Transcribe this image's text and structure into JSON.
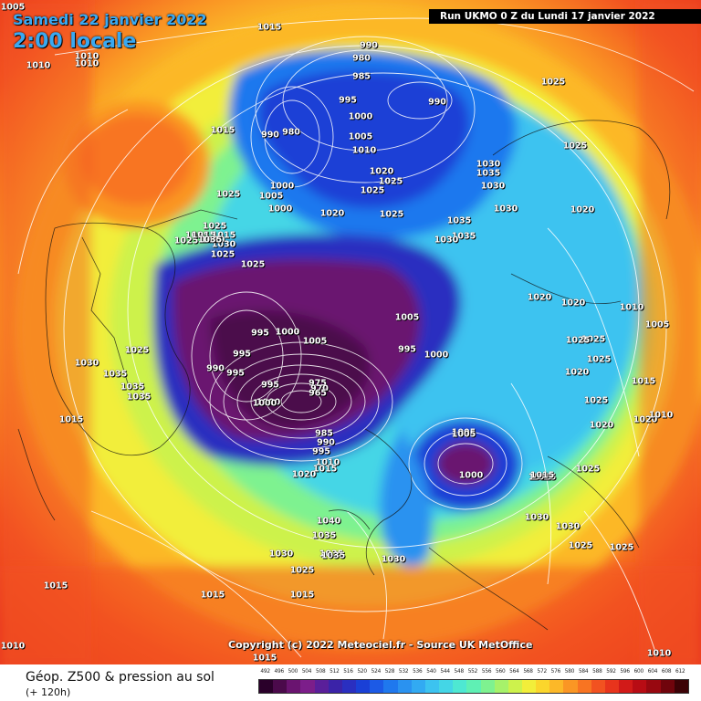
{
  "header": {
    "date": "Samedi 22 janvier 2022",
    "time": "2:00 locale",
    "run": "Run UKMO 0 Z du Lundi 17 janvier 2022"
  },
  "copyright": "Copyright (c) 2022 Meteociel.fr - Source UK MetOffice",
  "footer": {
    "title": "Géop. Z500 & pression au sol",
    "subtitle": "(+ 120h)"
  },
  "scale": {
    "labels": [
      "492",
      "496",
      "500",
      "504",
      "508",
      "512",
      "516",
      "520",
      "524",
      "528",
      "532",
      "536",
      "540",
      "544",
      "548",
      "552",
      "556",
      "560",
      "564",
      "568",
      "572",
      "576",
      "580",
      "584",
      "588",
      "592",
      "596",
      "600",
      "604",
      "608",
      "612"
    ],
    "colors": [
      "#2a002a",
      "#4b0a4b",
      "#6a1470",
      "#7c1e8a",
      "#5a1f9a",
      "#3b23a8",
      "#2a2fc0",
      "#1a40d6",
      "#1c5ae6",
      "#1f78ee",
      "#2a92f0",
      "#32aaf2",
      "#3cc3f0",
      "#44d6e6",
      "#4ee8d2",
      "#5ff0b4",
      "#7ef290",
      "#a6f26a",
      "#cdf24c",
      "#f2ee3a",
      "#fbd62c",
      "#fcb828",
      "#fa9624",
      "#f87422",
      "#f25220",
      "#e8341c",
      "#d21a18",
      "#b80c14",
      "#980810",
      "#70040c",
      "#3c0206"
    ]
  },
  "pressure_labels": [
    {
      "text": "1005"
    },
    {
      "text": "1015"
    },
    {
      "text": "1010"
    },
    {
      "text": "1010"
    },
    {
      "text": "1010"
    },
    {
      "text": "990"
    },
    {
      "text": "980"
    },
    {
      "text": "985"
    },
    {
      "text": "990"
    },
    {
      "text": "995"
    },
    {
      "text": "1000"
    },
    {
      "text": "990"
    },
    {
      "text": "980"
    },
    {
      "text": "1005"
    },
    {
      "text": "1010"
    },
    {
      "text": "1015"
    },
    {
      "text": "1025"
    },
    {
      "text": "1025"
    },
    {
      "text": "1030"
    },
    {
      "text": "1035"
    },
    {
      "text": "1025"
    },
    {
      "text": "1020"
    },
    {
      "text": "1025"
    },
    {
      "text": "1025"
    },
    {
      "text": "1030"
    },
    {
      "text": "1005"
    },
    {
      "text": "1000"
    },
    {
      "text": "1000"
    },
    {
      "text": "1020"
    },
    {
      "text": "1025"
    },
    {
      "text": "1020"
    },
    {
      "text": "1035"
    },
    {
      "text": "1030"
    },
    {
      "text": "1035"
    },
    {
      "text": "1030"
    },
    {
      "text": "1025"
    },
    {
      "text": "1025"
    },
    {
      "text": "1025"
    },
    {
      "text": "1015"
    },
    {
      "text": "1015"
    },
    {
      "text": "1020"
    },
    {
      "text": "1010"
    },
    {
      "text": "1005"
    },
    {
      "text": "1025"
    },
    {
      "text": "1025"
    },
    {
      "text": "1020"
    },
    {
      "text": "1025"
    },
    {
      "text": "1020"
    },
    {
      "text": "1025"
    },
    {
      "text": "1015"
    },
    {
      "text": "1020"
    },
    {
      "text": "1010"
    },
    {
      "text": "1025"
    },
    {
      "text": "1015"
    },
    {
      "text": "1005"
    },
    {
      "text": "1025"
    },
    {
      "text": "1035"
    },
    {
      "text": "1030"
    },
    {
      "text": "1035"
    },
    {
      "text": "1035"
    },
    {
      "text": "1030"
    },
    {
      "text": "1025"
    },
    {
      "text": "1030"
    },
    {
      "text": "1035"
    },
    {
      "text": "1025"
    },
    {
      "text": "1020"
    },
    {
      "text": "1030"
    },
    {
      "text": "1035"
    },
    {
      "text": "1035"
    },
    {
      "text": "1015"
    },
    {
      "text": "1015"
    },
    {
      "text": "995"
    },
    {
      "text": "1000"
    },
    {
      "text": "995"
    },
    {
      "text": "990"
    },
    {
      "text": "995"
    },
    {
      "text": "1005"
    },
    {
      "text": "1000"
    },
    {
      "text": "995"
    },
    {
      "text": "1000"
    },
    {
      "text": "975"
    },
    {
      "text": "970"
    },
    {
      "text": "965"
    },
    {
      "text": "985"
    },
    {
      "text": "990"
    },
    {
      "text": "995"
    },
    {
      "text": "1010"
    },
    {
      "text": "1015"
    },
    {
      "text": "1020"
    },
    {
      "text": "1005"
    },
    {
      "text": "995"
    },
    {
      "text": "1000"
    },
    {
      "text": "1005"
    },
    {
      "text": "1000"
    },
    {
      "text": "1015"
    },
    {
      "text": "1030"
    },
    {
      "text": "1025"
    },
    {
      "text": "1040"
    },
    {
      "text": "1030"
    },
    {
      "text": "1035"
    },
    {
      "text": "1030"
    },
    {
      "text": "1025"
    },
    {
      "text": "1015"
    },
    {
      "text": "1025"
    },
    {
      "text": "1015"
    },
    {
      "text": "1015"
    },
    {
      "text": "1010"
    },
    {
      "text": "1010"
    },
    {
      "text": "1015"
    }
  ]
}
